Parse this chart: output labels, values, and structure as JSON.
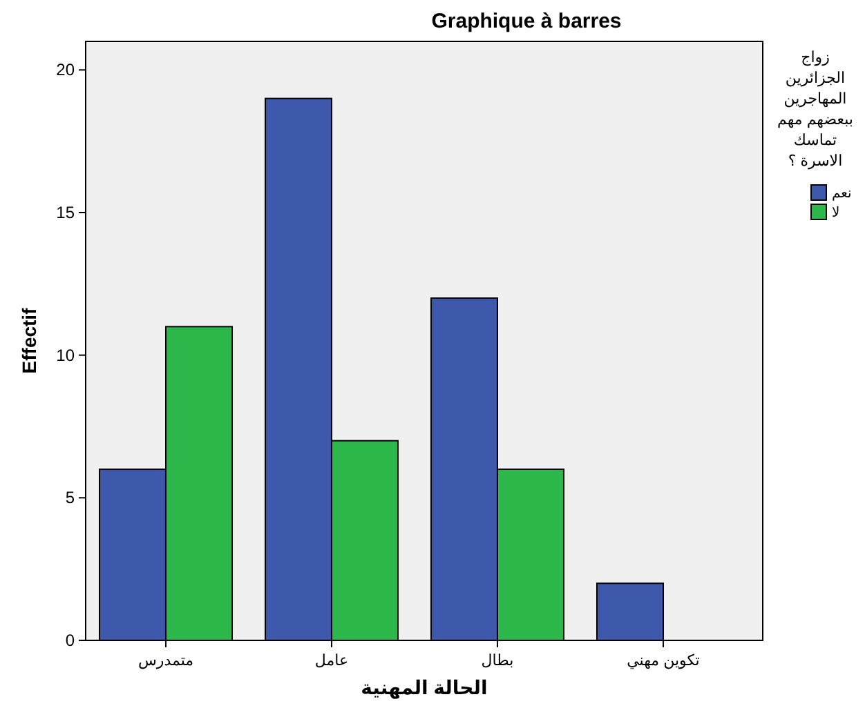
{
  "chart_data": {
    "type": "bar",
    "title": "Graphique à barres",
    "xlabel": "الحالة المهنية",
    "ylabel": "Effectif",
    "legend_title": "زواج الجزائرين المهاجرين ببعضهم مهم تماسك الاسرة ؟",
    "legend": "right",
    "categories": [
      "متمدرس",
      "عامل",
      "بطال",
      "تكوين مهني"
    ],
    "series": [
      {
        "name": "نعم",
        "color": "#3e58ac",
        "values": [
          6,
          19,
          12,
          2
        ]
      },
      {
        "name": "لا",
        "color": "#2db84b",
        "values": [
          11,
          7,
          6,
          null
        ]
      }
    ],
    "ylim": [
      0,
      21
    ],
    "yticks": [
      0,
      5,
      10,
      15,
      20
    ]
  }
}
